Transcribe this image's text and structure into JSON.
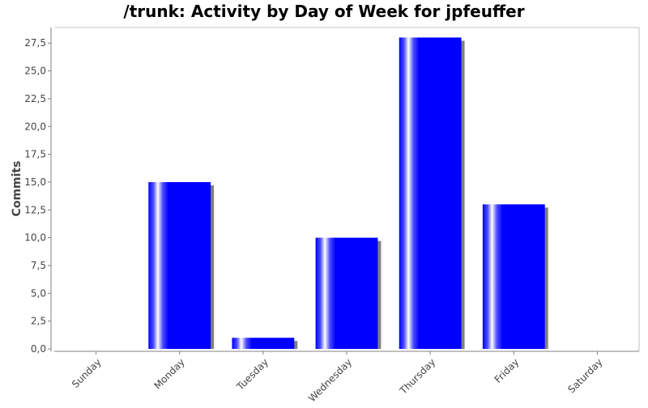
{
  "chart_data": {
    "type": "bar",
    "title": "/trunk: Activity by Day of Week for jpfeuffer",
    "xlabel": "",
    "ylabel": "Commits",
    "categories": [
      "Sunday",
      "Monday",
      "Tuesday",
      "Wednesday",
      "Thursday",
      "Friday",
      "Saturday"
    ],
    "values": [
      0,
      15,
      1,
      10,
      28,
      13,
      0
    ],
    "ylim": [
      0,
      28.9
    ],
    "yticks": [
      "0,0",
      "2,5",
      "5,0",
      "7,5",
      "10,0",
      "12,5",
      "15,0",
      "17,5",
      "20,0",
      "22,5",
      "25,0",
      "27,5"
    ],
    "grid": false,
    "legend": "none",
    "colors": {
      "bar": "#0000ff",
      "bar_highlight": "#ffffff",
      "shadow": "#808080",
      "axis": "#808080",
      "text": "#444444"
    }
  }
}
